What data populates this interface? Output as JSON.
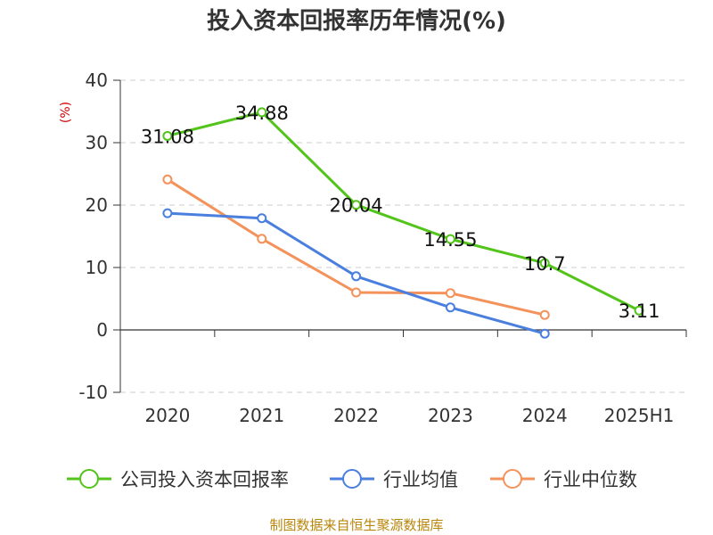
{
  "chart_data": {
    "type": "line",
    "title": "投入资本回报率历年情况(%)",
    "ylabel": "(%)",
    "xlabel": "",
    "categories": [
      "2020",
      "2021",
      "2022",
      "2023",
      "2024",
      "2025H1"
    ],
    "ylim": [
      -10,
      40
    ],
    "yticks": [
      40,
      30,
      20,
      10,
      0,
      -10
    ],
    "grid": true,
    "legend_position": "bottom",
    "series": [
      {
        "name": "公司投入资本回报率",
        "color": "#52c41a",
        "values": [
          31.08,
          34.88,
          20.04,
          14.55,
          10.7,
          3.11
        ],
        "labels": [
          "31.08",
          "34.88",
          "20.04",
          "14.55",
          "10.7",
          "3.11"
        ]
      },
      {
        "name": "行业均值",
        "color": "#4a7fde",
        "values": [
          18.7,
          17.9,
          8.6,
          3.6,
          -0.6,
          null
        ]
      },
      {
        "name": "行业中位数",
        "color": "#f4925b",
        "values": [
          24.1,
          14.6,
          6.0,
          5.9,
          2.4,
          null
        ]
      }
    ]
  },
  "source": "制图数据来自恒生聚源数据库"
}
